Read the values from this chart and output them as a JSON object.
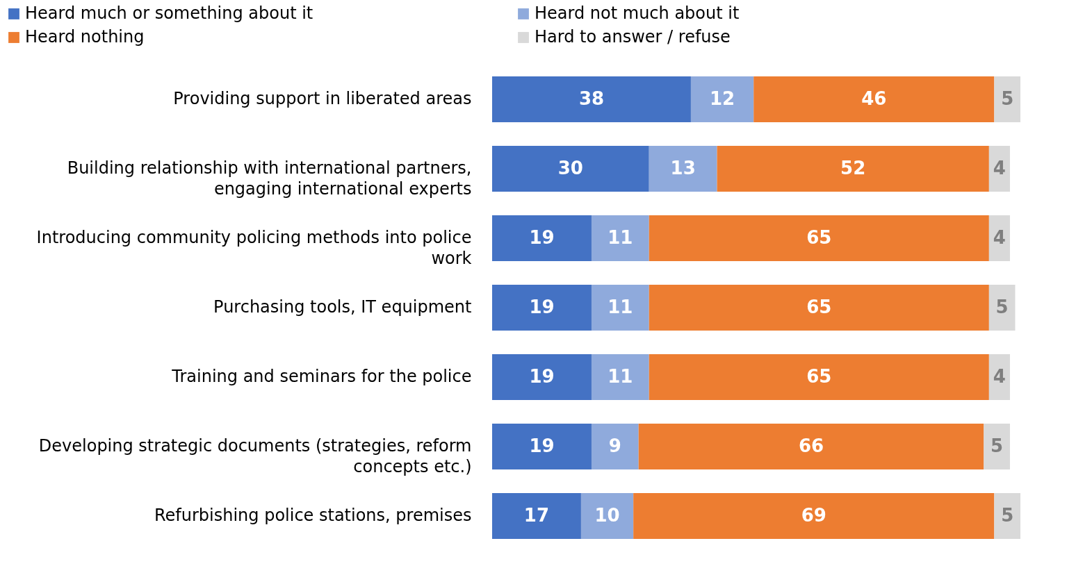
{
  "chart_data": {
    "type": "bar",
    "orientation": "horizontal",
    "stacked": true,
    "data_labels": true,
    "legend": "top",
    "categories": [
      "Providing support in liberated areas",
      "Building relationship with international partners, engaging international experts",
      "Introducing community policing methods into police work",
      "Purchasing tools, IT equipment",
      "Training and seminars for the police",
      "Developing strategic documents (strategies, reform concepts etc.)",
      "Refurbishing police stations, premises"
    ],
    "series": [
      {
        "name": "Heard much or something about it",
        "color": "#4472c4",
        "values": [
          38,
          30,
          19,
          19,
          19,
          19,
          17
        ]
      },
      {
        "name": "Heard not much about it",
        "color": "#8faadc",
        "values": [
          12,
          13,
          11,
          11,
          11,
          9,
          10
        ]
      },
      {
        "name": "Heard nothing",
        "color": "#ed7d31",
        "values": [
          46,
          52,
          65,
          65,
          65,
          66,
          69
        ]
      },
      {
        "name": "Hard to answer / refuse",
        "color": "#d9d9d9",
        "values": [
          5,
          4,
          4,
          5,
          4,
          5,
          5
        ]
      }
    ]
  }
}
